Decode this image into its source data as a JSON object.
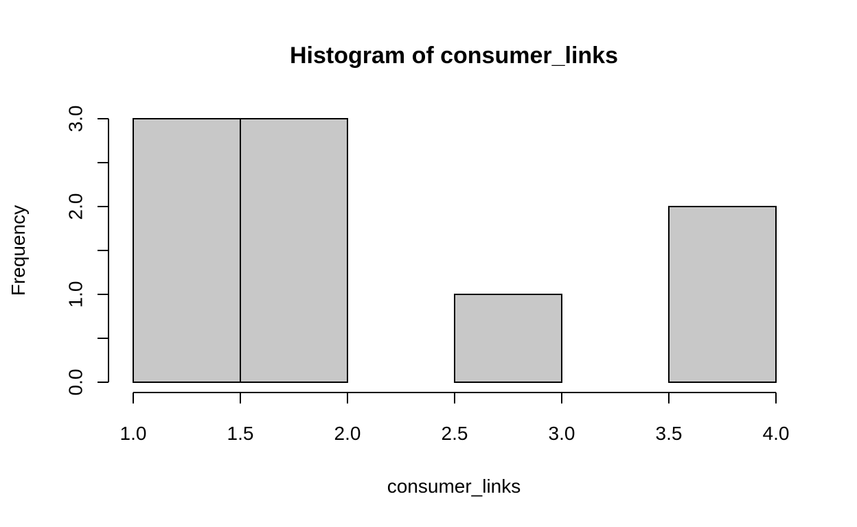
{
  "chart_data": {
    "type": "bar",
    "title": "Histogram of consumer_links",
    "xlabel": "consumer_links",
    "ylabel": "Frequency",
    "bins": [
      {
        "start": 1.0,
        "end": 1.5,
        "count": 3
      },
      {
        "start": 1.5,
        "end": 2.0,
        "count": 3
      },
      {
        "start": 2.0,
        "end": 2.5,
        "count": 0
      },
      {
        "start": 2.5,
        "end": 3.0,
        "count": 1
      },
      {
        "start": 3.0,
        "end": 3.5,
        "count": 0
      },
      {
        "start": 3.5,
        "end": 4.0,
        "count": 2
      }
    ],
    "xlim": [
      1.0,
      4.0
    ],
    "ylim": [
      0,
      3
    ],
    "x_ticks": [
      1.0,
      1.5,
      2.0,
      2.5,
      3.0,
      3.5,
      4.0
    ],
    "x_tick_labels": [
      "1.0",
      "1.5",
      "2.0",
      "2.5",
      "3.0",
      "3.5",
      "4.0"
    ],
    "y_ticks": [
      0,
      0.5,
      1,
      1.5,
      2,
      2.5,
      3
    ],
    "y_tick_labels": [
      "0.0",
      "",
      "1.0",
      "",
      "2.0",
      "",
      "3.0"
    ],
    "bar_color": "#c8c8c8",
    "grid": false,
    "legend": "none"
  }
}
